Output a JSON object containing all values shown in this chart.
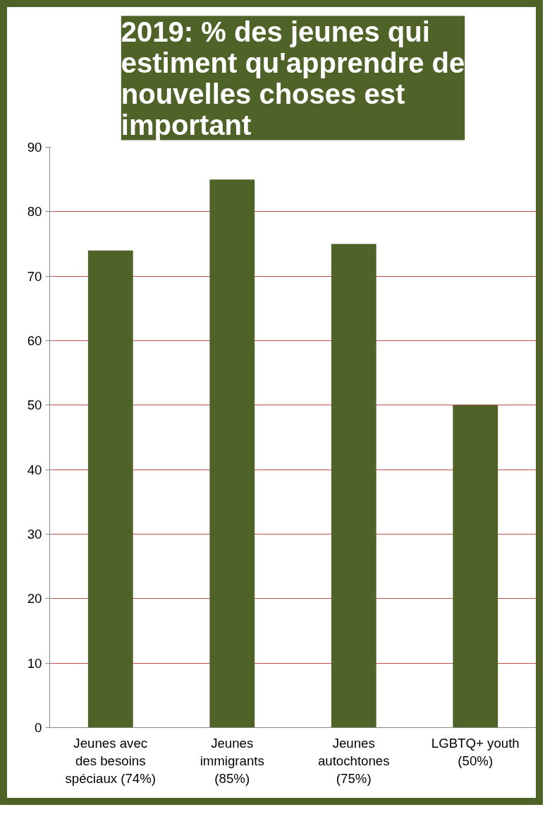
{
  "chart_data": {
    "type": "bar",
    "title": "2019: % des jeunes qui estiment qu'apprendre de nouvelles choses est important",
    "categories": [
      "Jeunes avec des besoins spéciaux (74%)",
      "Jeunes immigrants (85%)",
      "Jeunes autochtones (75%)",
      "LGBTQ+ youth (50%)"
    ],
    "values": [
      74,
      85,
      75,
      50
    ],
    "color": "#4f6228",
    "ylim": [
      0,
      90
    ],
    "yticks": [
      0,
      10,
      20,
      30,
      40,
      50,
      60,
      70,
      80,
      90
    ],
    "grid": "y"
  }
}
